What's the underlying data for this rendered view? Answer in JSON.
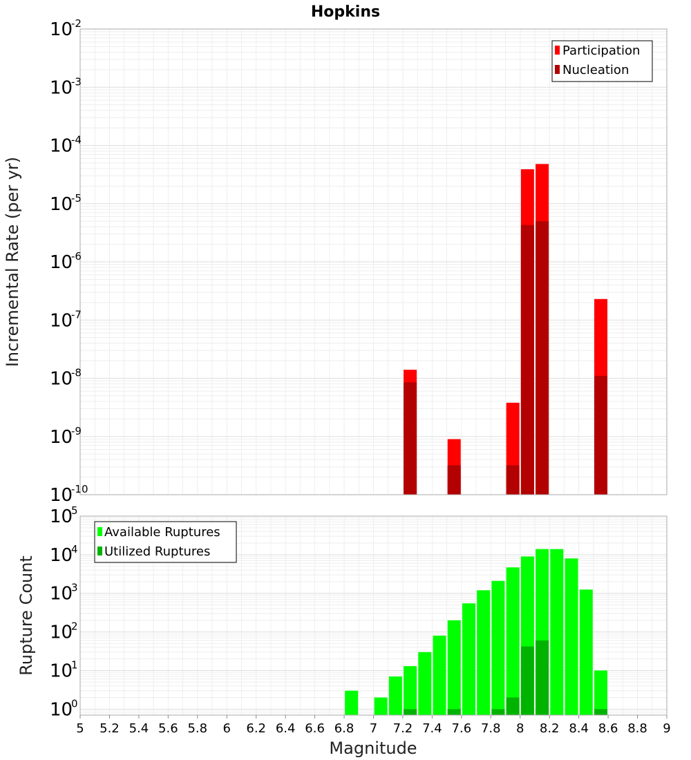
{
  "chart_data": [
    {
      "type": "bar",
      "title": "Hopkins",
      "xlabel": "",
      "ylabel": "Incremental Rate (per yr)",
      "y_scale": "log",
      "xlim": [
        5,
        9
      ],
      "ylim": [
        1e-10,
        0.01
      ],
      "y_tick_exponents": [
        -10,
        -9,
        -8,
        -7,
        -6,
        -5,
        -4,
        -3,
        -2
      ],
      "grid": true,
      "legend_position": "top-right",
      "series": [
        {
          "name": "Participation",
          "color": "#ff0000",
          "x": [
            7.25,
            7.55,
            7.95,
            8.05,
            8.15,
            8.55
          ],
          "values": [
            1.4e-08,
            9e-10,
            3.8e-09,
            3.9e-05,
            4.8e-05,
            2.3e-07
          ]
        },
        {
          "name": "Nucleation",
          "color": "#b30000",
          "x": [
            7.25,
            7.55,
            7.95,
            8.05,
            8.15,
            8.55
          ],
          "values": [
            8.5e-09,
            3.2e-10,
            3.2e-10,
            4.3e-06,
            5e-06,
            1.1e-08
          ]
        }
      ]
    },
    {
      "type": "bar",
      "title": "",
      "xlabel": "Magnitude",
      "ylabel": "Rupture Count",
      "y_scale": "log",
      "xlim": [
        5,
        9
      ],
      "ylim": [
        0.7,
        100000.0
      ],
      "y_tick_exponents": [
        0,
        1,
        2,
        3,
        4,
        5
      ],
      "x_ticks": [
        "5",
        "5.2",
        "5.4",
        "5.6",
        "5.8",
        "6",
        "6.2",
        "6.4",
        "6.6",
        "6.8",
        "7",
        "7.2",
        "7.4",
        "7.6",
        "7.8",
        "8",
        "8.2",
        "8.4",
        "8.6",
        "8.8",
        "9"
      ],
      "grid": true,
      "legend_position": "top-left",
      "series": [
        {
          "name": "Available Ruptures",
          "color": "#00ff00",
          "x": [
            6.85,
            7.05,
            7.15,
            7.25,
            7.35,
            7.45,
            7.55,
            7.65,
            7.75,
            7.85,
            7.95,
            8.05,
            8.15,
            8.25,
            8.35,
            8.45,
            8.55
          ],
          "values": [
            3,
            2,
            7,
            13,
            30,
            80,
            200,
            550,
            1200,
            2100,
            4700,
            9000,
            14000,
            14000,
            8000,
            1250,
            10
          ]
        },
        {
          "name": "Utilized Ruptures",
          "color": "#00b300",
          "x": [
            7.25,
            7.55,
            7.85,
            7.95,
            8.05,
            8.15,
            8.55
          ],
          "values": [
            1,
            1,
            1,
            2,
            42,
            60,
            1
          ]
        }
      ]
    }
  ]
}
